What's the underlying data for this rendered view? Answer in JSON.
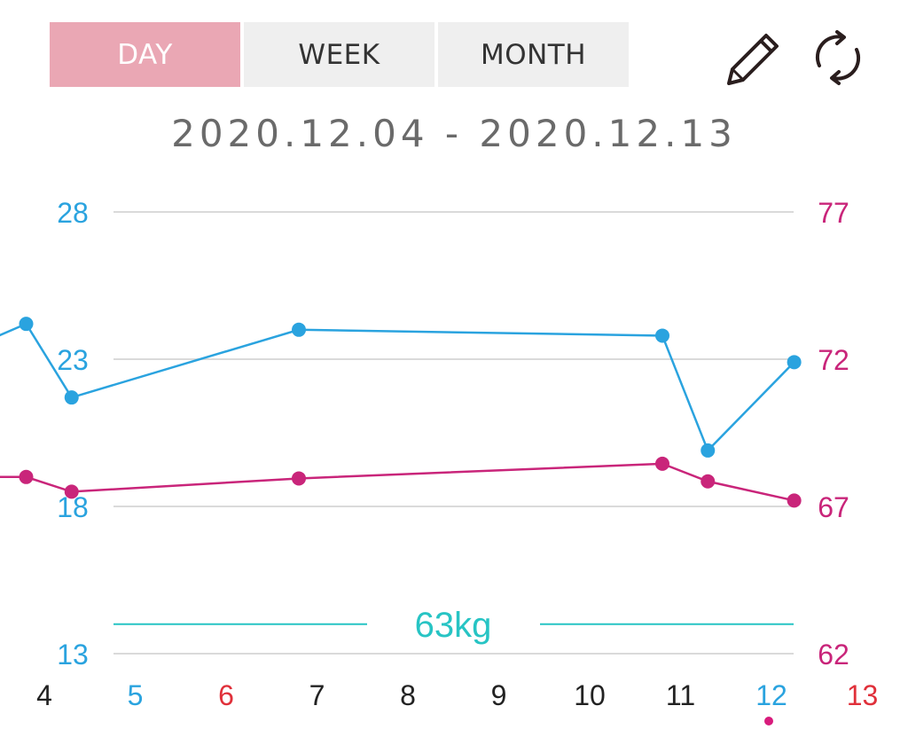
{
  "tabs": [
    {
      "label": "DAY",
      "active": true
    },
    {
      "label": "WEEK",
      "active": false
    },
    {
      "label": "MONTH",
      "active": false
    }
  ],
  "toolbar": {
    "edit_icon": "pencil-icon",
    "refresh_icon": "refresh-icon"
  },
  "date_range": "2020.12.04 - 2020.12.13",
  "colors": {
    "left_axis": "#2aa3df",
    "right_axis": "#c9257a",
    "target": "#27c4c4",
    "tab_active": "#eaa7b4",
    "tab_inactive": "#efefef",
    "saturday": "#2aa3df",
    "sunday": "#e0303a",
    "weekday": "#222222",
    "today_dot": "#d81b7c"
  },
  "chart_data": {
    "type": "line",
    "x_categories": [
      "4",
      "5",
      "6",
      "7",
      "8",
      "9",
      "10",
      "11",
      "12",
      "13"
    ],
    "x_label_colors": [
      "weekday",
      "saturday",
      "sunday",
      "weekday",
      "weekday",
      "weekday",
      "weekday",
      "weekday",
      "saturday",
      "sunday"
    ],
    "y_left": {
      "min": 13,
      "max": 28,
      "ticks": [
        "13",
        "18",
        "23",
        "28"
      ]
    },
    "y_right": {
      "min": 62,
      "max": 77,
      "ticks": [
        "62",
        "67",
        "72",
        "77"
      ]
    },
    "grid": true,
    "target_line": {
      "value": 63,
      "label": "63kg",
      "axis": "right"
    },
    "today_marker": "12",
    "series": [
      {
        "axis": "left",
        "color": "left_axis",
        "points": [
          [
            3.5,
            23.8
          ],
          [
            3.8,
            24.2
          ],
          [
            4.3,
            21.7
          ],
          [
            6.8,
            24.0
          ],
          [
            10.8,
            23.8
          ],
          [
            11.3,
            19.9
          ],
          [
            12.25,
            22.9
          ]
        ]
      },
      {
        "axis": "right",
        "color": "right_axis",
        "points": [
          [
            3.5,
            68.0
          ],
          [
            3.8,
            68.0
          ],
          [
            4.3,
            67.5
          ],
          [
            6.8,
            67.95
          ],
          [
            10.8,
            68.45
          ],
          [
            11.3,
            67.85
          ],
          [
            12.25,
            67.2
          ]
        ]
      }
    ]
  }
}
